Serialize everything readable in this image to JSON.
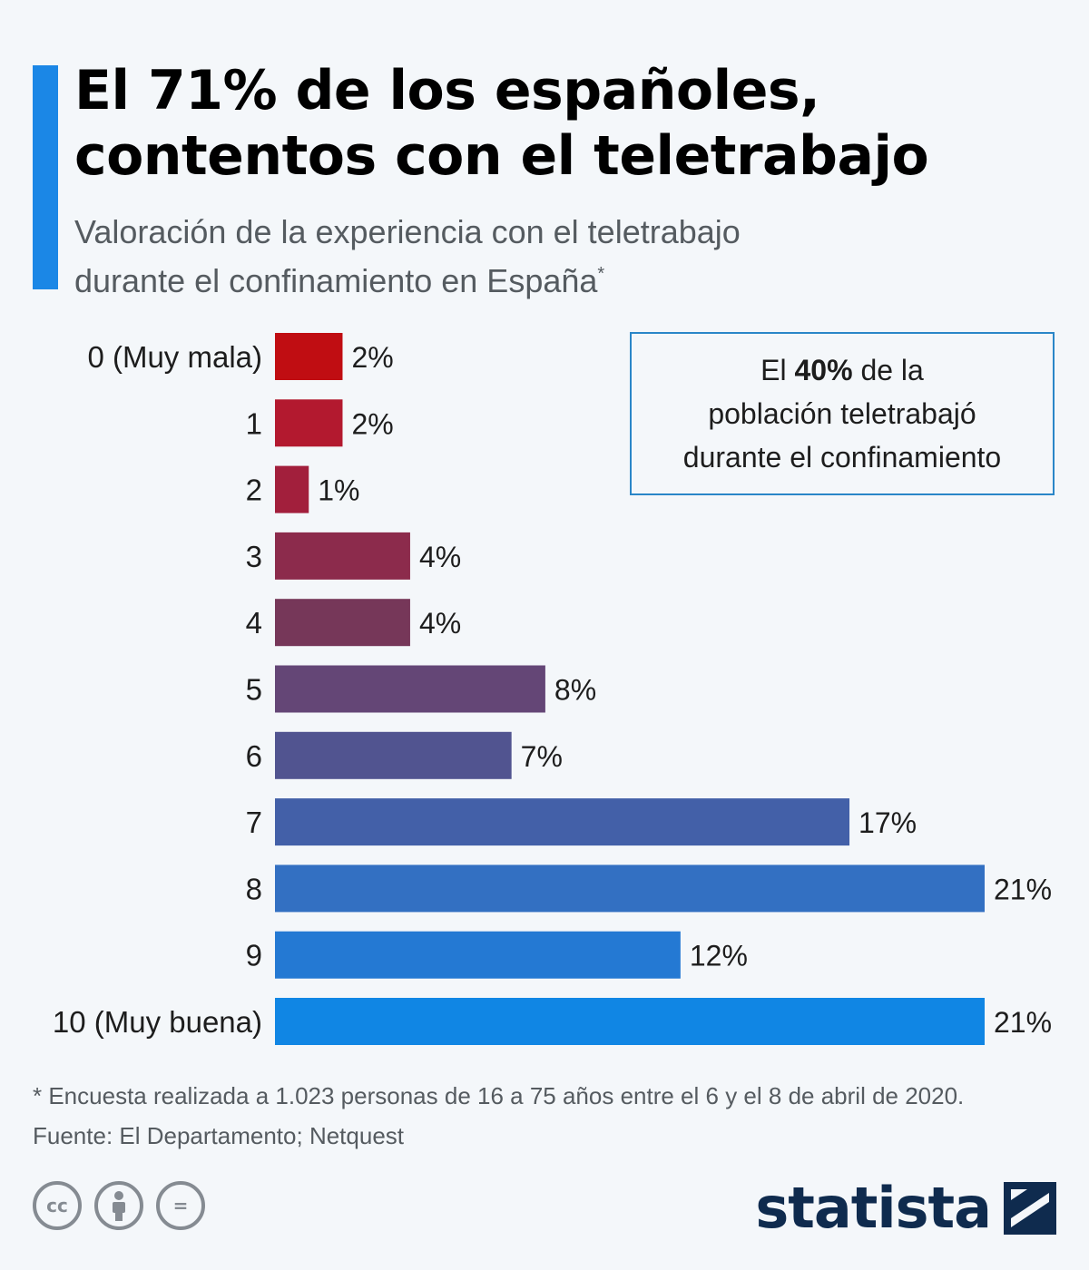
{
  "header": {
    "title_line1": "El 71% de los españoles,",
    "title_line2": "contentos con el teletrabajo",
    "subtitle_line1": "Valoración de la experiencia con el teletrabajo",
    "subtitle_line2": "durante el confinamiento en España",
    "subtitle_mark": "*"
  },
  "info_box": {
    "prefix": "El ",
    "highlight": "40%",
    "suffix": " de la",
    "line2": "población teletrabajó",
    "line3": "durante el confinamiento"
  },
  "chart_data": {
    "type": "bar",
    "orientation": "horizontal",
    "title": "",
    "xlabel": "",
    "ylabel": "",
    "categories": [
      "0 (Muy mala)",
      "1",
      "2",
      "3",
      "4",
      "5",
      "6",
      "7",
      "8",
      "9",
      "10 (Muy buena)"
    ],
    "values": [
      2,
      2,
      1,
      4,
      4,
      8,
      7,
      17,
      21,
      12,
      21
    ],
    "value_labels": [
      "2%",
      "2%",
      "1%",
      "4%",
      "4%",
      "8%",
      "7%",
      "17%",
      "21%",
      "12%",
      "21%"
    ],
    "colors": [
      "#c00d12",
      "#b3192f",
      "#a21f3c",
      "#8c2b4c",
      "#763759",
      "#644676",
      "#515490",
      "#4360a8",
      "#3370c2",
      "#2479d3",
      "#1086e4"
    ],
    "xlim": [
      0,
      21
    ],
    "grid": false,
    "legend": false
  },
  "footer": {
    "note": "* Encuesta realizada a 1.023 personas de 16 a 75 años entre el 6 y el 8 de abril de 2020.",
    "source": "Fuente: El Departamento; Netquest"
  },
  "license": {
    "cc": "cc",
    "by": "by-person",
    "nd": "="
  },
  "brand": {
    "name": "statista"
  }
}
